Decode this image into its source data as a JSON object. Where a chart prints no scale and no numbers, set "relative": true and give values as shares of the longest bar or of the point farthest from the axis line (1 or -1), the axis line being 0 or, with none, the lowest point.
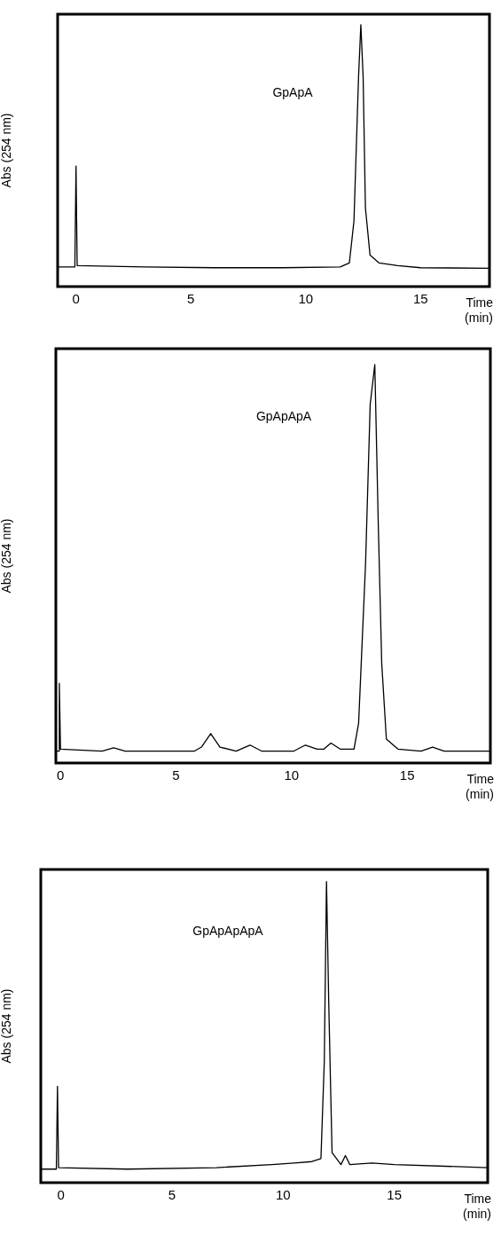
{
  "chart_data": [
    {
      "type": "line",
      "relative": true,
      "xlabel": "Time (min)",
      "ylabel": "Abs (254 nm)",
      "xlim": [
        -0.8,
        18
      ],
      "xticks": [
        0,
        5,
        10,
        15
      ],
      "grid": false,
      "legend": false,
      "marker": "none",
      "line_style": "solid",
      "annotations": [
        "GpApA"
      ],
      "series": [
        {
          "color": "#000000",
          "x": [
            -0.8,
            -0.05,
            0,
            0.05,
            3,
            6,
            9,
            11.5,
            11.9,
            12.1,
            12.3,
            12.4,
            12.5,
            12.6,
            12.8,
            13.2,
            14,
            15,
            18
          ],
          "values": [
            0.075,
            0.075,
            0.46,
            0.08,
            0.075,
            0.072,
            0.072,
            0.075,
            0.09,
            0.25,
            0.8,
            1,
            0.8,
            0.3,
            0.12,
            0.09,
            0.08,
            0.072,
            0.07
          ]
        }
      ]
    },
    {
      "type": "line",
      "relative": true,
      "xlabel": "Time (min)",
      "ylabel": "Abs (254 nm)",
      "xlim": [
        -0.2,
        18.6
      ],
      "xticks": [
        0,
        5,
        10,
        15
      ],
      "grid": false,
      "legend": false,
      "marker": "none",
      "line_style": "solid",
      "annotations": [
        "GpApApA"
      ],
      "series": [
        {
          "color": "#000000",
          "x": [
            -0.2,
            -0.08,
            -0.05,
            0,
            1.8,
            2.3,
            2.8,
            5.8,
            6.1,
            6.5,
            6.9,
            7.6,
            8.2,
            8.7,
            10.1,
            10.6,
            11.1,
            11.4,
            11.7,
            12.1,
            12.7,
            12.9,
            13.2,
            13.4,
            13.6,
            13.75,
            13.9,
            14.1,
            14.6,
            15.6,
            16.1,
            16.6,
            18.6
          ],
          "values": [
            0.03,
            0.03,
            0.2,
            0.035,
            0.03,
            0.038,
            0.03,
            0.03,
            0.04,
            0.074,
            0.04,
            0.03,
            0.045,
            0.03,
            0.03,
            0.045,
            0.035,
            0.035,
            0.05,
            0.035,
            0.035,
            0.1,
            0.5,
            0.9,
            1,
            0.6,
            0.25,
            0.06,
            0.035,
            0.03,
            0.04,
            0.03,
            0.03
          ]
        }
      ]
    },
    {
      "type": "line",
      "relative": true,
      "xlabel": "Time (min)",
      "ylabel": "Abs (254 nm)",
      "xlim": [
        -0.9,
        19.2
      ],
      "xticks": [
        0,
        5,
        10,
        15
      ],
      "grid": false,
      "legend": false,
      "marker": "none",
      "line_style": "solid",
      "annotations": [
        "GpApApApA"
      ],
      "series": [
        {
          "color": "#000000",
          "x": [
            -0.9,
            -0.2,
            -0.15,
            -0.1,
            3,
            7,
            9.5,
            10.5,
            11.3,
            11.7,
            11.85,
            11.95,
            12.05,
            12.2,
            12.6,
            12.8,
            13,
            14,
            15,
            19.2
          ],
          "values": [
            0.045,
            0.045,
            0.32,
            0.05,
            0.045,
            0.05,
            0.06,
            0.065,
            0.07,
            0.08,
            0.4,
            1,
            0.6,
            0.1,
            0.06,
            0.09,
            0.06,
            0.065,
            0.06,
            0.05
          ]
        }
      ]
    }
  ]
}
